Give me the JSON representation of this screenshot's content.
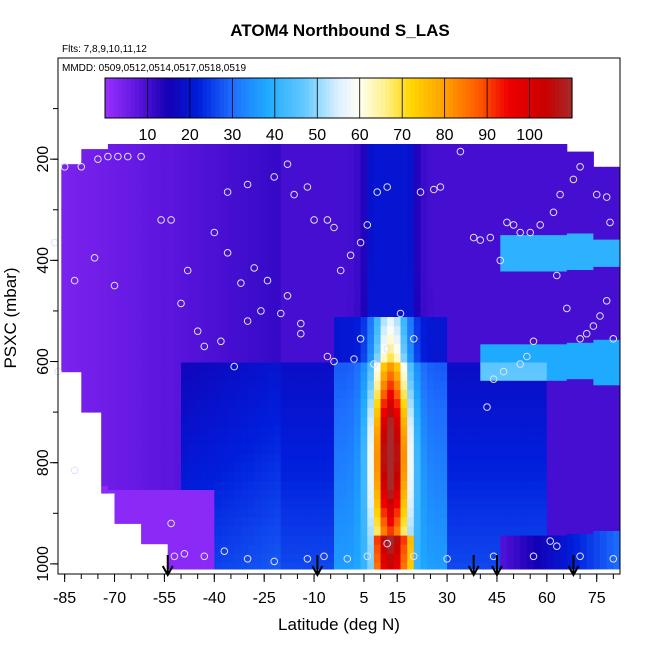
{
  "chart_data": {
    "type": "heatmap",
    "title": "ATOM4 Northbound S_LAS",
    "flights_label": "Flts: 7,8,9,10,11,12",
    "dates_label": "MMDD: 0509,0512,0514,0517,0518,0519",
    "xlabel": "Latitude (deg N)",
    "ylabel": "PSXC (mbar)",
    "xlim": [
      -87,
      82
    ],
    "ylim": [
      1020,
      0
    ],
    "x_ticks": [
      -85,
      -70,
      -55,
      -40,
      -25,
      -10,
      5,
      15,
      30,
      45,
      60,
      75
    ],
    "y_ticks": [
      200,
      400,
      600,
      800,
      1000
    ],
    "colorbar": {
      "range": [
        0,
        110
      ],
      "ticks": [
        10,
        20,
        30,
        40,
        50,
        60,
        70,
        80,
        90,
        100
      ],
      "colors": [
        "#9b30ff",
        "#6a1fe0",
        "#1d00c8",
        "#0010d6",
        "#1f55f0",
        "#1e90ff",
        "#3cb8ff",
        "#bfe6ff",
        "#fffff0",
        "#ffef90",
        "#ffd700",
        "#ffa500",
        "#ff6a00",
        "#ff0000",
        "#d40000",
        "#a52a2a"
      ]
    },
    "latitude_bins": [
      -85,
      -80,
      -75,
      -70,
      -65,
      -60,
      -55,
      -50,
      -45,
      -40,
      -35,
      -30,
      -25,
      -20,
      -15,
      -10,
      -5,
      0,
      5,
      8,
      10,
      12,
      15,
      18,
      20,
      25,
      30,
      35,
      40,
      45,
      50,
      55,
      60,
      65,
      70,
      75,
      80
    ],
    "pressure_levels": [
      190,
      225,
      262,
      300,
      337,
      375,
      412,
      450,
      487,
      525,
      562,
      600,
      637,
      675,
      712,
      750,
      787,
      825,
      862,
      900,
      937,
      975,
      1000
    ],
    "values_description_levels_note": "",
    "profile_points": [
      [
        -85,
        215
      ],
      [
        -80,
        215
      ],
      [
        -75,
        200
      ],
      [
        -72,
        195
      ],
      [
        -69,
        195
      ],
      [
        -66,
        195
      ],
      [
        -62,
        195
      ],
      [
        -88,
        365
      ],
      [
        -82,
        440
      ],
      [
        -76,
        395
      ],
      [
        -70,
        450
      ],
      [
        -56,
        320
      ],
      [
        -53,
        320
      ],
      [
        -48,
        420
      ],
      [
        -50,
        485
      ],
      [
        -45,
        540
      ],
      [
        -43,
        570
      ],
      [
        -38,
        560
      ],
      [
        -34,
        610
      ],
      [
        -30,
        520
      ],
      [
        -26,
        500
      ],
      [
        -18,
        470
      ],
      [
        -14,
        525
      ],
      [
        -36,
        265
      ],
      [
        -30,
        250
      ],
      [
        -22,
        235
      ],
      [
        -18,
        210
      ],
      [
        -16,
        270
      ],
      [
        -12,
        255
      ],
      [
        -10,
        320
      ],
      [
        -6,
        320
      ],
      [
        -4,
        335
      ],
      [
        -2,
        420
      ],
      [
        1,
        390
      ],
      [
        4,
        365
      ],
      [
        6,
        330
      ],
      [
        9,
        265
      ],
      [
        12,
        255
      ],
      [
        -40,
        345
      ],
      [
        -36,
        385
      ],
      [
        -32,
        445
      ],
      [
        -28,
        415
      ],
      [
        -24,
        440
      ],
      [
        -20,
        505
      ],
      [
        -14,
        545
      ],
      [
        -6,
        590
      ],
      [
        -4,
        600
      ],
      [
        2,
        595
      ],
      [
        4,
        555
      ],
      [
        8,
        605
      ],
      [
        12,
        575
      ],
      [
        16,
        505
      ],
      [
        20,
        555
      ],
      [
        22,
        265
      ],
      [
        26,
        260
      ],
      [
        28,
        255
      ],
      [
        34,
        185
      ],
      [
        38,
        355
      ],
      [
        40,
        360
      ],
      [
        43,
        355
      ],
      [
        46,
        400
      ],
      [
        48,
        325
      ],
      [
        50,
        330
      ],
      [
        52,
        345
      ],
      [
        55,
        345
      ],
      [
        58,
        330
      ],
      [
        62,
        305
      ],
      [
        64,
        270
      ],
      [
        68,
        240
      ],
      [
        70,
        215
      ],
      [
        75,
        270
      ],
      [
        78,
        275
      ],
      [
        79,
        325
      ],
      [
        63,
        430
      ],
      [
        66,
        495
      ],
      [
        70,
        555
      ],
      [
        72,
        545
      ],
      [
        74,
        530
      ],
      [
        76,
        510
      ],
      [
        78,
        480
      ],
      [
        80,
        555
      ],
      [
        56,
        560
      ],
      [
        54,
        590
      ],
      [
        52,
        605
      ],
      [
        47,
        620
      ],
      [
        44,
        635
      ],
      [
        42,
        690
      ],
      [
        -52,
        985
      ],
      [
        -49,
        980
      ],
      [
        -43,
        985
      ],
      [
        -37,
        975
      ],
      [
        -30,
        990
      ],
      [
        -22,
        995
      ],
      [
        -12,
        990
      ],
      [
        -7,
        985
      ],
      [
        0,
        990
      ],
      [
        6,
        985
      ],
      [
        12,
        960
      ],
      [
        20,
        985
      ],
      [
        30,
        990
      ],
      [
        44,
        985
      ],
      [
        56,
        985
      ],
      [
        61,
        955
      ],
      [
        63,
        965
      ],
      [
        70,
        985
      ],
      [
        80,
        990
      ],
      [
        -53,
        920
      ],
      [
        -87,
        620
      ],
      [
        -82,
        815
      ]
    ],
    "arrow_latitudes": [
      -54,
      -9,
      38,
      45,
      68
    ]
  }
}
